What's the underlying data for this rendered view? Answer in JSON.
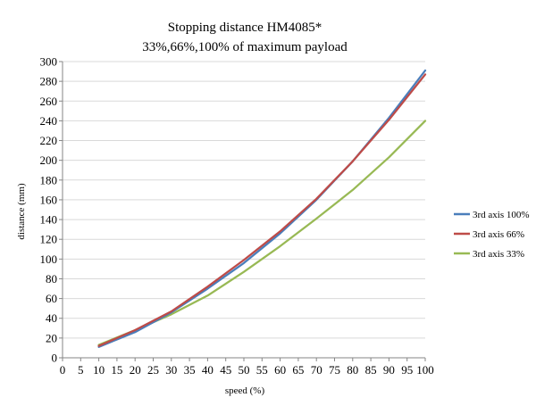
{
  "chart_data": {
    "type": "line",
    "title": "Stopping distance HM4085*",
    "subtitle": "33%,66%,100% of maximum payload",
    "xlabel": "speed (%)",
    "ylabel": "distance (mm)",
    "xlim": [
      0,
      100
    ],
    "ylim": [
      0,
      300
    ],
    "x_ticks": [
      "0",
      "5",
      "10",
      "15",
      "20",
      "25",
      "30",
      "35",
      "40",
      "45",
      "50",
      "55",
      "60",
      "65",
      "70",
      "75",
      "80",
      "85",
      "90",
      "95",
      "100"
    ],
    "y_ticks": [
      "0",
      "20",
      "40",
      "60",
      "80",
      "100",
      "120",
      "140",
      "160",
      "180",
      "200",
      "220",
      "240",
      "260",
      "280",
      "300"
    ],
    "x_tick_values": [
      0,
      5,
      10,
      15,
      20,
      25,
      30,
      35,
      40,
      45,
      50,
      55,
      60,
      65,
      70,
      75,
      80,
      85,
      90,
      95,
      100
    ],
    "y_tick_values": [
      0,
      20,
      40,
      60,
      80,
      100,
      120,
      140,
      160,
      180,
      200,
      220,
      240,
      260,
      280,
      300
    ],
    "grid": "horizontal",
    "legend_position": "right",
    "x": [
      10,
      20,
      30,
      40,
      50,
      60,
      70,
      80,
      90,
      100
    ],
    "series": [
      {
        "name": "3rd axis 100%",
        "color": "#4a7ebb",
        "values": [
          11,
          26,
          46,
          70,
          96,
          126,
          160,
          199,
          243,
          291
        ]
      },
      {
        "name": "3rd axis 66%",
        "color": "#be4b48",
        "values": [
          12,
          28,
          47,
          72,
          99,
          128,
          161,
          199,
          241,
          287
        ]
      },
      {
        "name": "3rd axis 33%",
        "color": "#98b954",
        "values": [
          13,
          28,
          44,
          63,
          87,
          113,
          141,
          170,
          203,
          240
        ]
      }
    ]
  }
}
